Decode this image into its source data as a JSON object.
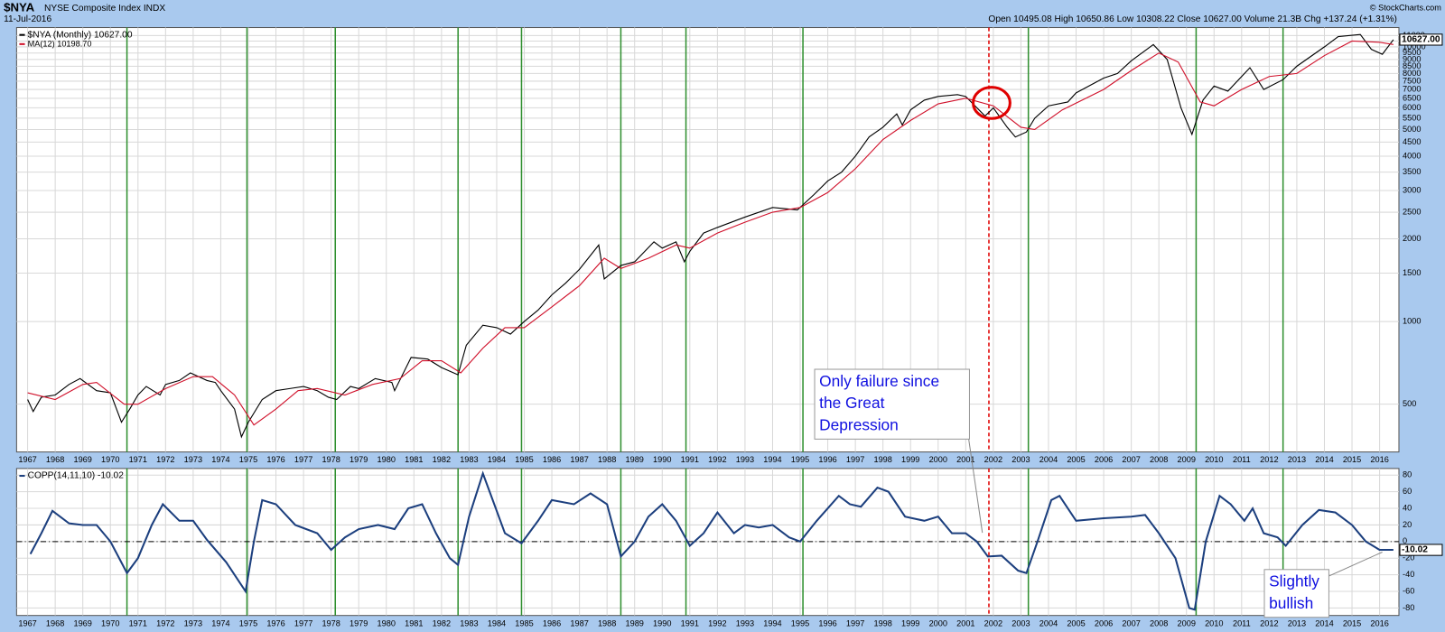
{
  "chart_data": [
    {
      "type": "line",
      "title": "$NYA",
      "subtitle": "NYSE Composite Index INDX",
      "date": "11-Jul-2016",
      "quote": "Open 10495.08 High 10650.86 Low 10308.22 Close 10627.00 Volume 21.3B Chg +137.24 (+1.31%)",
      "source": "© StockCharts.com",
      "yscale": "log",
      "grid": true,
      "xlim": [
        1966.6,
        2016.7
      ],
      "ylim": [
        335,
        11760
      ],
      "xticks": [
        1967,
        1968,
        1969,
        1970,
        1971,
        1972,
        1973,
        1974,
        1975,
        1976,
        1977,
        1978,
        1979,
        1980,
        1981,
        1982,
        1983,
        1984,
        1985,
        1986,
        1987,
        1988,
        1989,
        1990,
        1991,
        1992,
        1993,
        1994,
        1995,
        1996,
        1997,
        1998,
        1999,
        2000,
        2001,
        2002,
        2003,
        2004,
        2005,
        2006,
        2007,
        2008,
        2009,
        2010,
        2011,
        2012,
        2013,
        2014,
        2015,
        2016
      ],
      "yticks": [
        500,
        1000,
        1500,
        2000,
        2500,
        3000,
        3500,
        4000,
        4500,
        5000,
        5500,
        6000,
        6500,
        7000,
        7500,
        8000,
        8500,
        9000,
        9500,
        10000,
        10500,
        11000
      ],
      "series": [
        {
          "name": "$NYA (Monthly) 10627.00",
          "color": "#000000",
          "x": [
            1967.0,
            1967.2,
            1967.5,
            1968.0,
            1968.5,
            1968.9,
            1969.5,
            1970.0,
            1970.4,
            1970.7,
            1971.0,
            1971.3,
            1971.8,
            1972.0,
            1972.5,
            1972.9,
            1973.5,
            1973.8,
            1974.0,
            1974.5,
            1974.75,
            1975.0,
            1975.5,
            1976.0,
            1976.5,
            1977.0,
            1977.5,
            1977.9,
            1978.2,
            1978.7,
            1979.0,
            1979.6,
            1980.2,
            1980.3,
            1980.9,
            1981.5,
            1982.0,
            1982.6,
            1982.9,
            1983.5,
            1984.0,
            1984.5,
            1985.0,
            1985.5,
            1986.0,
            1986.5,
            1987.0,
            1987.7,
            1987.9,
            1988.5,
            1989.0,
            1989.7,
            1990.0,
            1990.5,
            1990.8,
            1991.0,
            1991.5,
            1992.0,
            1993.0,
            1994.0,
            1994.9,
            1995.5,
            1996.0,
            1996.5,
            1997.0,
            1997.5,
            1998.0,
            1998.5,
            1998.7,
            1999.0,
            1999.5,
            2000.0,
            2000.7,
            2001.0,
            2001.7,
            2002.0,
            2002.5,
            2002.8,
            2003.2,
            2003.5,
            2004.0,
            2004.7,
            2005.0,
            2006.0,
            2006.5,
            2007.0,
            2007.8,
            2008.3,
            2008.8,
            2009.2,
            2009.6,
            2010.0,
            2010.5,
            2011.3,
            2011.8,
            2012.5,
            2013.0,
            2014.0,
            2014.5,
            2015.3,
            2015.7,
            2016.1,
            2016.5
          ],
          "values": [
            520,
            470,
            530,
            540,
            590,
            620,
            560,
            550,
            430,
            480,
            540,
            580,
            540,
            590,
            610,
            650,
            610,
            600,
            560,
            480,
            380,
            430,
            520,
            560,
            570,
            580,
            560,
            530,
            520,
            580,
            570,
            620,
            600,
            560,
            740,
            730,
            680,
            640,
            820,
            970,
            950,
            900,
            1000,
            1100,
            1250,
            1380,
            1550,
            1900,
            1430,
            1600,
            1650,
            1950,
            1850,
            1950,
            1650,
            1800,
            2100,
            2200,
            2400,
            2600,
            2550,
            2900,
            3250,
            3500,
            4000,
            4700,
            5100,
            5700,
            5200,
            5900,
            6400,
            6600,
            6700,
            6600,
            5600,
            6000,
            5100,
            4700,
            4900,
            5500,
            6100,
            6300,
            6800,
            7700,
            8000,
            8900,
            10200,
            9000,
            6000,
            4800,
            6400,
            7200,
            6900,
            8400,
            7000,
            7600,
            8500,
            10000,
            10900,
            11100,
            9800,
            9400,
            10627
          ]
        },
        {
          "name": "MA(12) 10198.70",
          "color": "#d0102a",
          "x": [
            1967.0,
            1968.0,
            1969.0,
            1969.5,
            1970.5,
            1971.0,
            1972.0,
            1973.0,
            1973.7,
            1974.5,
            1975.2,
            1976.0,
            1976.8,
            1977.5,
            1978.5,
            1979.5,
            1980.5,
            1981.3,
            1982.0,
            1982.7,
            1983.5,
            1984.3,
            1985.0,
            1986.0,
            1987.0,
            1987.9,
            1988.5,
            1989.5,
            1990.5,
            1991.0,
            1992.0,
            1993.0,
            1994.0,
            1995.0,
            1996.0,
            1997.0,
            1998.0,
            1999.0,
            2000.0,
            2001.0,
            2002.0,
            2003.0,
            2003.5,
            2004.5,
            2006.0,
            2007.0,
            2008.0,
            2008.7,
            2009.5,
            2010.0,
            2011.0,
            2012.0,
            2013.0,
            2014.0,
            2015.0,
            2016.0,
            2016.5
          ],
          "values": [
            550,
            520,
            590,
            600,
            500,
            500,
            570,
            630,
            630,
            540,
            420,
            480,
            560,
            570,
            540,
            590,
            620,
            720,
            720,
            650,
            800,
            950,
            950,
            1130,
            1350,
            1700,
            1560,
            1700,
            1900,
            1850,
            2100,
            2300,
            2500,
            2600,
            2950,
            3600,
            4600,
            5400,
            6200,
            6500,
            6100,
            5100,
            5000,
            5900,
            7000,
            8200,
            9500,
            8800,
            6300,
            6100,
            7000,
            7800,
            8000,
            9300,
            10500,
            10400,
            10198.7
          ]
        }
      ],
      "last_value": {
        "value": 10627,
        "label": "10627.00"
      },
      "signals": [
        1970.6,
        1974.95,
        1978.15,
        1982.6,
        1984.9,
        1988.5,
        1990.86,
        1995.1,
        2003.27,
        2009.35,
        2012.5
      ],
      "signal_color": "#2f8f2f",
      "failed_signal": 2001.84,
      "failed_color": "#e00000",
      "annotation": [
        "Only failure since",
        "the Great",
        "Depression"
      ]
    },
    {
      "type": "line",
      "grid": true,
      "xlim": [
        1966.6,
        2016.7
      ],
      "ylim": [
        -89,
        88
      ],
      "xticks": [
        1967,
        1968,
        1969,
        1970,
        1971,
        1972,
        1973,
        1974,
        1975,
        1976,
        1977,
        1978,
        1979,
        1980,
        1981,
        1982,
        1983,
        1984,
        1985,
        1986,
        1987,
        1988,
        1989,
        1990,
        1991,
        1992,
        1993,
        1994,
        1995,
        1996,
        1997,
        1998,
        1999,
        2000,
        2001,
        2002,
        2003,
        2004,
        2005,
        2006,
        2007,
        2008,
        2009,
        2010,
        2011,
        2012,
        2013,
        2014,
        2015,
        2016
      ],
      "yticks": [
        -80,
        -60,
        -40,
        -20,
        0,
        20,
        40,
        60,
        80
      ],
      "hline": 0,
      "series": [
        {
          "name": "COPP(14,11,10) -10.02",
          "color": "#1c3f7e",
          "x": [
            1967.1,
            1967.5,
            1967.9,
            1968.5,
            1969.0,
            1969.5,
            1970.0,
            1970.6,
            1971.0,
            1971.5,
            1971.9,
            1972.5,
            1973.0,
            1973.5,
            1974.2,
            1974.9,
            1975.2,
            1975.5,
            1976.0,
            1976.7,
            1977.5,
            1978.0,
            1978.5,
            1979.0,
            1979.7,
            1980.3,
            1980.8,
            1981.3,
            1981.8,
            1982.3,
            1982.6,
            1983.0,
            1983.5,
            1983.8,
            1984.3,
            1984.9,
            1985.5,
            1986.0,
            1986.8,
            1987.4,
            1988.0,
            1988.2,
            1988.5,
            1989.0,
            1989.5,
            1990.0,
            1990.5,
            1991.0,
            1991.5,
            1992.0,
            1992.6,
            1993.0,
            1993.5,
            1994.0,
            1994.6,
            1995.0,
            1995.6,
            1996.4,
            1996.8,
            1997.2,
            1997.8,
            1998.2,
            1998.8,
            1999.5,
            2000.0,
            2000.5,
            2001.0,
            2001.4,
            2001.8,
            2002.3,
            2002.9,
            2003.2,
            2003.6,
            2004.1,
            2004.4,
            2005.0,
            2006.0,
            2007.0,
            2007.5,
            2008.0,
            2008.6,
            2009.1,
            2009.3,
            2009.7,
            2010.2,
            2010.6,
            2011.1,
            2011.4,
            2011.8,
            2012.3,
            2012.6,
            2013.2,
            2013.8,
            2014.4,
            2015.0,
            2015.5,
            2016.0,
            2016.5
          ],
          "values": [
            -15,
            10,
            37,
            22,
            20,
            20,
            0,
            -38,
            -20,
            20,
            45,
            25,
            25,
            2,
            -25,
            -60,
            0,
            50,
            45,
            20,
            10,
            -10,
            5,
            15,
            20,
            15,
            40,
            45,
            10,
            -20,
            -28,
            30,
            82,
            55,
            10,
            -2,
            25,
            50,
            45,
            58,
            45,
            20,
            -18,
            0,
            30,
            45,
            25,
            -5,
            10,
            35,
            10,
            20,
            17,
            20,
            5,
            0,
            25,
            55,
            45,
            42,
            65,
            60,
            30,
            25,
            30,
            10,
            10,
            0,
            -18,
            -17,
            -35,
            -38,
            0,
            50,
            55,
            25,
            28,
            30,
            32,
            10,
            -20,
            -80,
            -82,
            0,
            55,
            45,
            25,
            40,
            10,
            5,
            -5,
            20,
            38,
            35,
            20,
            0,
            -10,
            -10.02
          ]
        }
      ],
      "last_value": {
        "value": -10.02,
        "label": "-10.02"
      },
      "annotation": [
        "Slightly",
        "bullish"
      ]
    }
  ]
}
